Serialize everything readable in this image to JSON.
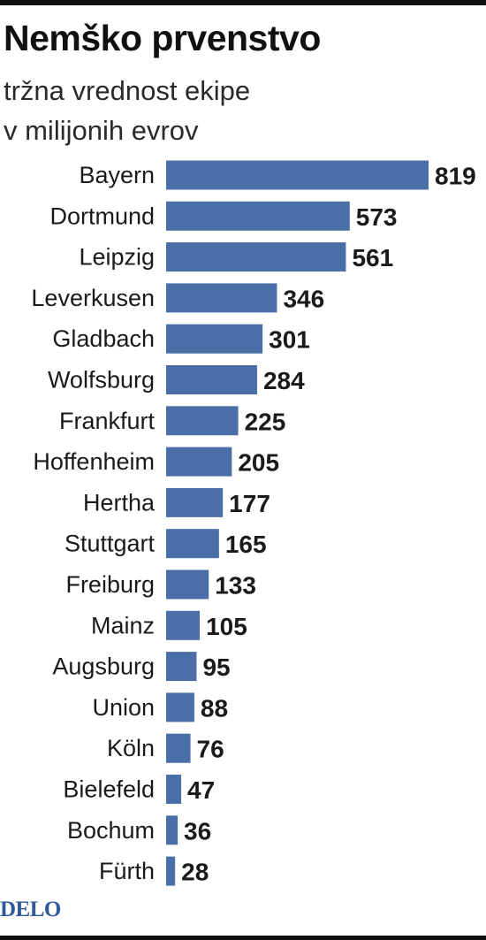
{
  "chart_data": {
    "type": "bar",
    "orientation": "horizontal",
    "title": "Nemško prvenstvo",
    "subtitle": [
      "tržna vrednost ekipe",
      "v milijonih evrov"
    ],
    "categories": [
      "Bayern",
      "Dortmund",
      "Leipzig",
      "Leverkusen",
      "Gladbach",
      "Wolfsburg",
      "Frankfurt",
      "Hoffenheim",
      "Hertha",
      "Stuttgart",
      "Freiburg",
      "Mainz",
      "Augsburg",
      "Union",
      "Köln",
      "Bielefeld",
      "Bochum",
      "Fürth"
    ],
    "values": [
      819,
      573,
      561,
      346,
      301,
      284,
      225,
      205,
      177,
      165,
      133,
      105,
      95,
      88,
      76,
      47,
      36,
      28
    ],
    "data_labels": true,
    "bar_color": "#4a6fa8",
    "grid": false,
    "legend": "none"
  },
  "footer": {
    "logo": "DELO",
    "logo_color": "#2f5a9a"
  }
}
